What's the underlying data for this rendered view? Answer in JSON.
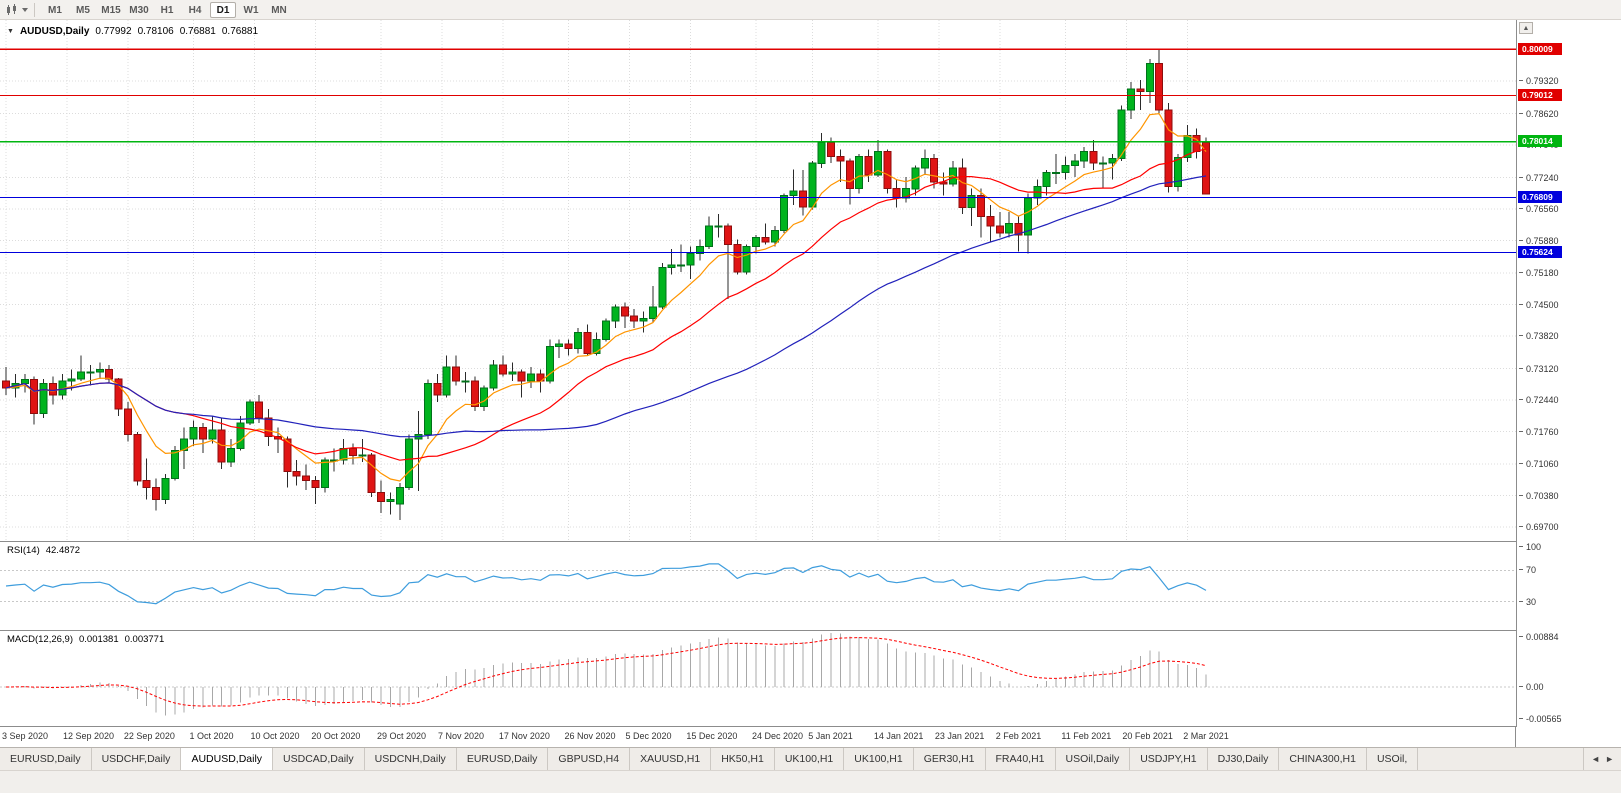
{
  "toolbar": {
    "timeframes": [
      "M1",
      "M5",
      "M15",
      "M30",
      "H1",
      "H4",
      "D1",
      "W1",
      "MN"
    ],
    "active_timeframe": "D1"
  },
  "chart": {
    "header": {
      "collapse_icon": "▼",
      "symbol": "AUDUSD,Daily",
      "open": "0.77992",
      "high": "0.78106",
      "low": "0.76881",
      "close": "0.76881"
    },
    "price_axis": {
      "min": 0.694,
      "max": 0.8064,
      "ticks": [
        "0.79320",
        "0.78620",
        "0.77940",
        "0.77240",
        "0.76560",
        "0.75880",
        "0.75180",
        "0.74500",
        "0.73820",
        "0.73120",
        "0.72440",
        "0.71760",
        "0.71060",
        "0.70380",
        "0.69700"
      ]
    },
    "hlines": [
      {
        "price": 0.80009,
        "label": "0.80009",
        "color": "#e00000"
      },
      {
        "price": 0.79012,
        "label": "0.79012",
        "color": "#e00000"
      },
      {
        "price": 0.78014,
        "label": "0.78014",
        "color": "#00b510"
      },
      {
        "price": 0.76809,
        "label": "0.76809",
        "color": "#0000dd"
      },
      {
        "price": 0.75624,
        "label": "0.75624",
        "color": "#0000dd"
      }
    ],
    "moving_averages": [
      {
        "type": "ema",
        "period": 8,
        "color": "#ff9500"
      },
      {
        "type": "sma",
        "period": 20,
        "color": "#ff0000"
      },
      {
        "type": "sma",
        "period": 50,
        "color": "#2222bb"
      }
    ],
    "candle_colors": {
      "up": "#00b41e",
      "up_border": "#00711a",
      "down": "#df1414",
      "down_border": "#8d0d0d",
      "wick": "#2b2b2b"
    }
  },
  "chart_data": {
    "type": "candlestick",
    "title": "AUDUSD,Daily",
    "last_bar": {
      "open": 0.77992,
      "high": 0.78106,
      "low": 0.76881,
      "close": 0.76881
    },
    "candles": [
      [
        0.7285,
        0.7315,
        0.7255,
        0.727
      ],
      [
        0.727,
        0.73,
        0.725,
        0.728
      ],
      [
        0.728,
        0.73,
        0.726,
        0.7288
      ],
      [
        0.7288,
        0.7295,
        0.7191,
        0.7215
      ],
      [
        0.7215,
        0.729,
        0.7205,
        0.728
      ],
      [
        0.728,
        0.7295,
        0.7235,
        0.7255
      ],
      [
        0.7255,
        0.73,
        0.7245,
        0.7285
      ],
      [
        0.7285,
        0.731,
        0.7265,
        0.729
      ],
      [
        0.729,
        0.734,
        0.7285,
        0.7305
      ],
      [
        0.7305,
        0.732,
        0.7275,
        0.7305
      ],
      [
        0.7305,
        0.7325,
        0.729,
        0.731
      ],
      [
        0.731,
        0.732,
        0.728,
        0.729
      ],
      [
        0.729,
        0.7292,
        0.721,
        0.7225
      ],
      [
        0.7225,
        0.724,
        0.7155,
        0.717
      ],
      [
        0.717,
        0.7175,
        0.706,
        0.707
      ],
      [
        0.707,
        0.7118,
        0.703,
        0.7055
      ],
      [
        0.7055,
        0.7075,
        0.7006,
        0.703
      ],
      [
        0.703,
        0.7085,
        0.702,
        0.7075
      ],
      [
        0.7075,
        0.7145,
        0.707,
        0.7135
      ],
      [
        0.7135,
        0.7185,
        0.7095,
        0.716
      ],
      [
        0.716,
        0.72,
        0.7145,
        0.7185
      ],
      [
        0.7185,
        0.7195,
        0.713,
        0.716
      ],
      [
        0.716,
        0.721,
        0.715,
        0.718
      ],
      [
        0.718,
        0.7205,
        0.7095,
        0.711
      ],
      [
        0.711,
        0.716,
        0.71,
        0.714
      ],
      [
        0.714,
        0.721,
        0.7135,
        0.7195
      ],
      [
        0.7195,
        0.7245,
        0.719,
        0.724
      ],
      [
        0.724,
        0.7255,
        0.7195,
        0.7205
      ],
      [
        0.7205,
        0.7225,
        0.7145,
        0.7165
      ],
      [
        0.7165,
        0.7185,
        0.713,
        0.716
      ],
      [
        0.716,
        0.7165,
        0.7055,
        0.709
      ],
      [
        0.709,
        0.7115,
        0.706,
        0.708
      ],
      [
        0.708,
        0.7105,
        0.705,
        0.707
      ],
      [
        0.707,
        0.708,
        0.702,
        0.7055
      ],
      [
        0.7055,
        0.712,
        0.7045,
        0.7115
      ],
      [
        0.7115,
        0.714,
        0.709,
        0.7115
      ],
      [
        0.7115,
        0.716,
        0.7105,
        0.714
      ],
      [
        0.714,
        0.715,
        0.7105,
        0.7125
      ],
      [
        0.7125,
        0.716,
        0.711,
        0.7125
      ],
      [
        0.7125,
        0.713,
        0.7035,
        0.7045
      ],
      [
        0.7045,
        0.707,
        0.7,
        0.7025
      ],
      [
        0.7025,
        0.7045,
        0.6997,
        0.703
      ],
      [
        0.702,
        0.7065,
        0.6985,
        0.7055
      ],
      [
        0.7055,
        0.717,
        0.705,
        0.716
      ],
      [
        0.716,
        0.722,
        0.7048,
        0.717
      ],
      [
        0.717,
        0.7288,
        0.716,
        0.728
      ],
      [
        0.728,
        0.73,
        0.724,
        0.7255
      ],
      [
        0.7255,
        0.734,
        0.725,
        0.7315
      ],
      [
        0.7315,
        0.734,
        0.7275,
        0.7285
      ],
      [
        0.7285,
        0.7305,
        0.726,
        0.7285
      ],
      [
        0.7285,
        0.7295,
        0.722,
        0.723
      ],
      [
        0.723,
        0.7275,
        0.722,
        0.727
      ],
      [
        0.727,
        0.733,
        0.7265,
        0.732
      ],
      [
        0.732,
        0.734,
        0.7295,
        0.73
      ],
      [
        0.73,
        0.7325,
        0.7285,
        0.7305
      ],
      [
        0.7305,
        0.731,
        0.725,
        0.7285
      ],
      [
        0.7285,
        0.7315,
        0.727,
        0.73
      ],
      [
        0.73,
        0.731,
        0.726,
        0.7285
      ],
      [
        0.7285,
        0.7375,
        0.728,
        0.736
      ],
      [
        0.736,
        0.7375,
        0.7335,
        0.7365
      ],
      [
        0.7365,
        0.7375,
        0.734,
        0.7355
      ],
      [
        0.7355,
        0.74,
        0.7345,
        0.739
      ],
      [
        0.739,
        0.7407,
        0.734,
        0.7345
      ],
      [
        0.7345,
        0.739,
        0.734,
        0.7375
      ],
      [
        0.7375,
        0.742,
        0.737,
        0.7415
      ],
      [
        0.7415,
        0.745,
        0.74,
        0.7445
      ],
      [
        0.7445,
        0.7455,
        0.74,
        0.7425
      ],
      [
        0.7425,
        0.744,
        0.74,
        0.7415
      ],
      [
        0.7415,
        0.7435,
        0.739,
        0.742
      ],
      [
        0.742,
        0.749,
        0.741,
        0.7445
      ],
      [
        0.7445,
        0.754,
        0.744,
        0.753
      ],
      [
        0.753,
        0.757,
        0.7515,
        0.7535
      ],
      [
        0.7535,
        0.758,
        0.752,
        0.7535
      ],
      [
        0.7535,
        0.7575,
        0.7505,
        0.756
      ],
      [
        0.756,
        0.759,
        0.7545,
        0.7575
      ],
      [
        0.7575,
        0.764,
        0.757,
        0.762
      ],
      [
        0.762,
        0.7645,
        0.7595,
        0.762
      ],
      [
        0.762,
        0.7625,
        0.7462,
        0.758
      ],
      [
        0.758,
        0.759,
        0.7515,
        0.752
      ],
      [
        0.752,
        0.758,
        0.7515,
        0.7575
      ],
      [
        0.7575,
        0.76,
        0.756,
        0.7595
      ],
      [
        0.7595,
        0.7625,
        0.758,
        0.7585
      ],
      [
        0.7585,
        0.762,
        0.7575,
        0.761
      ],
      [
        0.761,
        0.769,
        0.7605,
        0.7685
      ],
      [
        0.7685,
        0.7742,
        0.7665,
        0.7695
      ],
      [
        0.7695,
        0.774,
        0.7642,
        0.766
      ],
      [
        0.766,
        0.776,
        0.7655,
        0.7755
      ],
      [
        0.7755,
        0.782,
        0.7745,
        0.78
      ],
      [
        0.78,
        0.781,
        0.7755,
        0.777
      ],
      [
        0.777,
        0.7785,
        0.7715,
        0.776
      ],
      [
        0.776,
        0.7765,
        0.7666,
        0.77
      ],
      [
        0.77,
        0.7775,
        0.769,
        0.777
      ],
      [
        0.777,
        0.7785,
        0.7715,
        0.773
      ],
      [
        0.773,
        0.7805,
        0.7725,
        0.778
      ],
      [
        0.778,
        0.7785,
        0.769,
        0.77
      ],
      [
        0.77,
        0.772,
        0.766,
        0.768
      ],
      [
        0.768,
        0.7725,
        0.767,
        0.77
      ],
      [
        0.77,
        0.775,
        0.7685,
        0.7745
      ],
      [
        0.7745,
        0.7785,
        0.773,
        0.7765
      ],
      [
        0.7765,
        0.7775,
        0.77,
        0.7715
      ],
      [
        0.7715,
        0.7735,
        0.7685,
        0.771
      ],
      [
        0.771,
        0.776,
        0.7705,
        0.7745
      ],
      [
        0.7745,
        0.7765,
        0.7645,
        0.766
      ],
      [
        0.766,
        0.77,
        0.762,
        0.7685
      ],
      [
        0.7685,
        0.77,
        0.7595,
        0.764
      ],
      [
        0.764,
        0.7665,
        0.7585,
        0.762
      ],
      [
        0.762,
        0.765,
        0.7595,
        0.7605
      ],
      [
        0.7605,
        0.765,
        0.7595,
        0.7625
      ],
      [
        0.7625,
        0.764,
        0.7565,
        0.76
      ],
      [
        0.76,
        0.769,
        0.756,
        0.768
      ],
      [
        0.768,
        0.772,
        0.7665,
        0.7705
      ],
      [
        0.7705,
        0.774,
        0.7685,
        0.7735
      ],
      [
        0.7735,
        0.7775,
        0.771,
        0.7735
      ],
      [
        0.7735,
        0.777,
        0.772,
        0.775
      ],
      [
        0.775,
        0.7775,
        0.7725,
        0.776
      ],
      [
        0.776,
        0.779,
        0.7745,
        0.778
      ],
      [
        0.778,
        0.7805,
        0.774,
        0.7755
      ],
      [
        0.7755,
        0.777,
        0.77,
        0.7755
      ],
      [
        0.7755,
        0.7775,
        0.772,
        0.7765
      ],
      [
        0.7765,
        0.788,
        0.776,
        0.787
      ],
      [
        0.787,
        0.793,
        0.785,
        0.7915
      ],
      [
        0.7915,
        0.7935,
        0.787,
        0.791
      ],
      [
        0.791,
        0.798,
        0.7885,
        0.797
      ],
      [
        0.797,
        0.80009,
        0.786,
        0.787
      ],
      [
        0.787,
        0.7885,
        0.7692,
        0.7705
      ],
      [
        0.7705,
        0.7775,
        0.7694,
        0.7767
      ],
      [
        0.7767,
        0.7838,
        0.7758,
        0.7815
      ],
      [
        0.7815,
        0.783,
        0.7765,
        0.778
      ],
      [
        0.77992,
        0.78106,
        0.76881,
        0.76881
      ]
    ],
    "x_labels": [
      {
        "text": "3 Sep 2020",
        "index": 0
      },
      {
        "text": "12 Sep 2020",
        "index": 6.5
      },
      {
        "text": "22 Sep 2020",
        "index": 13
      },
      {
        "text": "1 Oct 2020",
        "index": 20
      },
      {
        "text": "10 Oct 2020",
        "index": 26.5
      },
      {
        "text": "20 Oct 2020",
        "index": 33
      },
      {
        "text": "29 Oct 2020",
        "index": 40
      },
      {
        "text": "7 Nov 2020",
        "index": 46.5
      },
      {
        "text": "17 Nov 2020",
        "index": 53
      },
      {
        "text": "26 Nov 2020",
        "index": 60
      },
      {
        "text": "5 Dec 2020",
        "index": 66.5
      },
      {
        "text": "15 Dec 2020",
        "index": 73
      },
      {
        "text": "24 Dec 2020",
        "index": 80
      },
      {
        "text": "5 Jan 2021",
        "index": 86
      },
      {
        "text": "14 Jan 2021",
        "index": 93
      },
      {
        "text": "23 Jan 2021",
        "index": 99.5
      },
      {
        "text": "2 Feb 2021",
        "index": 106
      },
      {
        "text": "11 Feb 2021",
        "index": 113
      },
      {
        "text": "20 Feb 2021",
        "index": 119.5
      },
      {
        "text": "2 Mar 2021",
        "index": 126
      }
    ]
  },
  "rsi": {
    "label": "RSI(14)",
    "value": "42.4872",
    "levels": [
      70,
      30
    ],
    "axis_labels": [
      {
        "text": "100",
        "value": 100
      },
      {
        "text": "70",
        "value": 70
      },
      {
        "text": "30",
        "value": 30
      }
    ],
    "color": "#3e9ddd"
  },
  "macd": {
    "label": "MACD(12,26,9)",
    "value_main": "0.001381",
    "value_signal": "0.003771",
    "fast": 12,
    "slow": 26,
    "signal": 9,
    "axis_labels": [
      {
        "text": "0.00884",
        "value": 0.00884
      },
      {
        "text": "0.00",
        "value": 0
      },
      {
        "text": "-0.00565",
        "value": -0.00565
      }
    ],
    "scale": {
      "max": 0.00884,
      "min": -0.00565
    },
    "histogram_color": "#a8a8a8",
    "signal_color": "#ff0000"
  },
  "tabs": {
    "items": [
      "EURUSD,Daily",
      "USDCHF,Daily",
      "AUDUSD,Daily",
      "USDCAD,Daily",
      "USDCNH,Daily",
      "EURUSD,Daily",
      "GBPUSD,H4",
      "XAUUSD,H1",
      "HK50,H1",
      "UK100,H1",
      "UK100,H1",
      "GER30,H1",
      "FRA40,H1",
      "USOil,Daily",
      "USDJPY,H1",
      "DJ30,Daily",
      "CHINA300,H1",
      "USOil,"
    ],
    "active_index": 2,
    "scroll_left_icon": "◄",
    "scroll_right_icon": "►"
  },
  "axis_misc": {
    "scroll_up_icon": "▲"
  }
}
